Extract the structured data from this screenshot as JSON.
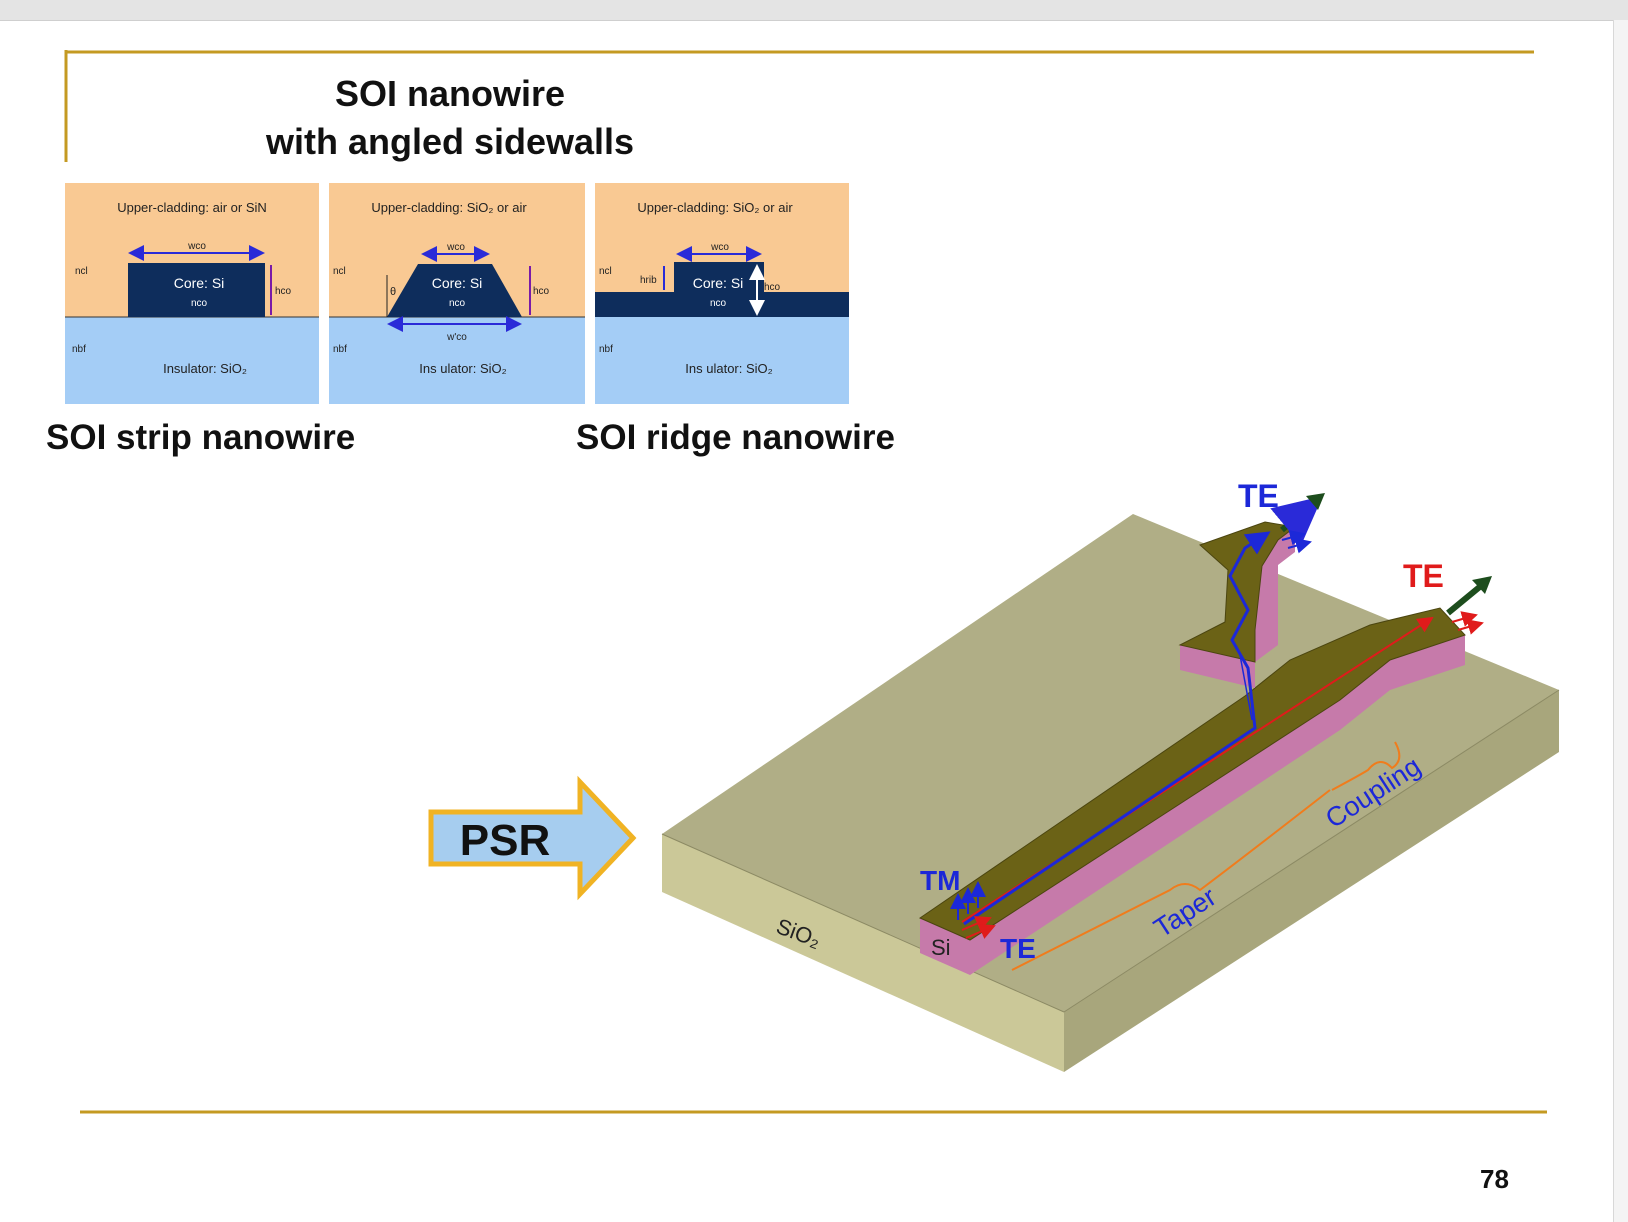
{
  "title_line1": "SOI nanowire",
  "title_line2": "with angled sidewalls",
  "labels": {
    "strip": "SOI strip nanowire",
    "ridge": "SOI ridge nanowire"
  },
  "panels": [
    {
      "cladding": "Upper-cladding: air or SiN",
      "core_label": "Core: Si",
      "core_index": "nco",
      "width_label": "wco",
      "height_label": "hco",
      "n_cl": "ncl",
      "n_bf": "nbf",
      "insulator": "Insulator: SiO₂"
    },
    {
      "cladding": "Upper-cladding: SiO₂ or air",
      "core_label": "Core: Si",
      "core_index": "nco",
      "width_label": "wco",
      "bottom_width_label": "w'co",
      "height_label": "hco",
      "angle_label": "θ",
      "n_cl": "ncl",
      "n_bf": "nbf",
      "insulator": "Ins ulator: SiO₂"
    },
    {
      "cladding": "Upper-cladding: SiO₂ or air",
      "core_label": "Core: Si",
      "core_index": "nco",
      "width_label": "wco",
      "height_label": "hco",
      "rib_label": "hrib",
      "n_cl": "ncl",
      "n_bf": "nbf",
      "insulator": "Ins ulator: SiO₂"
    }
  ],
  "psr_label": "PSR",
  "device": {
    "substrate": "SiO₂",
    "core": "Si",
    "input_tm": "TM",
    "input_te": "TE",
    "output_top": "TE",
    "output_right": "TE",
    "taper": "Taper",
    "coupling": "Coupling"
  },
  "page_number": "78",
  "colors": {
    "cladding": "#f9c993",
    "insulator": "#a4cdf6",
    "core": "#0e2d5c",
    "gold": "#c49a22",
    "slab_top": "#b0ae86",
    "slab_front": "#cbc898",
    "slab_side": "#a8a67c",
    "waveguide_top": "#6b6216",
    "waveguide_side": "#c67aaa",
    "te_red": "#e01b1b",
    "tm_blue": "#1c28d8",
    "output_arrow": "#1d4d1d",
    "bracket": "#f07c1c"
  }
}
